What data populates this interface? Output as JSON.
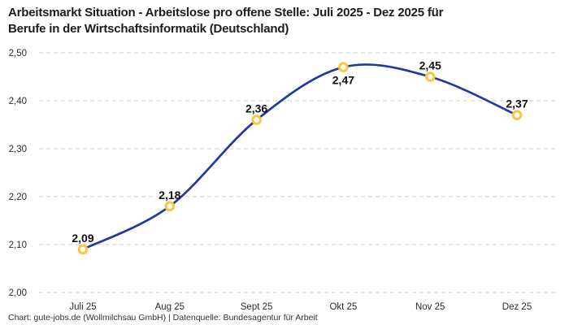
{
  "header": {
    "title_line1": "Arbeitsmarkt Situation - Arbeitslose pro offene Stelle: Juli 2025 - Dez 2025 für",
    "title_line2": "Berufe in der Wirtschaftsinformatik (Deutschland)"
  },
  "footer": {
    "credit": "Chart: gute-jobs.de (Wollmilchsau GmbH) | Datenquelle: Bundesagentur für Arbeit"
  },
  "chart_data": {
    "type": "line",
    "title": "Arbeitsmarkt Situation - Arbeitslose pro offene Stelle: Juli 2025 - Dez 2025 für Berufe in der Wirtschaftsinformatik (Deutschland)",
    "categories": [
      "Juli 25",
      "Aug 25",
      "Sept 25",
      "Okt 25",
      "Nov 25",
      "Dez 25"
    ],
    "values": [
      2.09,
      2.18,
      2.36,
      2.47,
      2.45,
      2.37
    ],
    "value_labels": [
      "2,09",
      "2,18",
      "2,36",
      "2,47",
      "2,45",
      "2,37"
    ],
    "value_label_positions": [
      "above",
      "above",
      "above",
      "below",
      "above",
      "above"
    ],
    "xlabel": "",
    "ylabel": "",
    "ylim": [
      2.0,
      2.5
    ],
    "y_ticks": [
      2.0,
      2.1,
      2.2,
      2.3,
      2.4,
      2.5
    ],
    "y_tick_labels": [
      "2,00",
      "2,10",
      "2,20",
      "2,30",
      "2,40",
      "2,50"
    ],
    "grid": "horizontal-dashed",
    "legend": "none",
    "colors": {
      "line": "#1f3a9d",
      "marker_ring": "#fcc53c",
      "marker_fill": "#ffffff",
      "gridline": "#cccccc",
      "tick_text": "#2b2b2b",
      "value_text": "#111111"
    }
  }
}
